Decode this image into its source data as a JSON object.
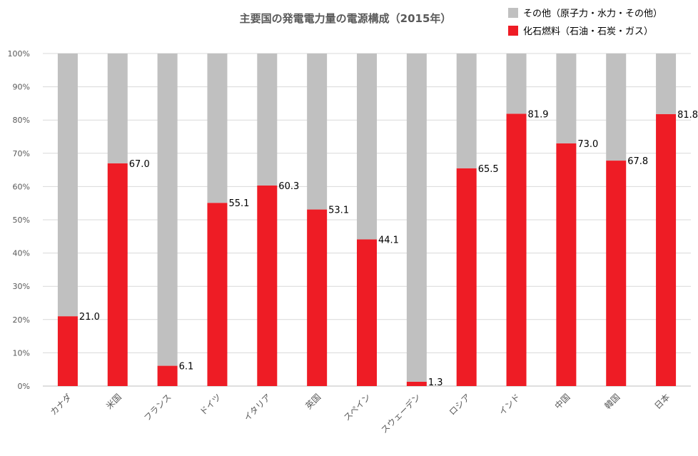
{
  "chart_data": {
    "type": "bar",
    "stacked": true,
    "title": "主要国の発電電力量の電源構成（2015年）",
    "categories": [
      "カナダ",
      "米国",
      "フランス",
      "ドイツ",
      "イタリア",
      "英国",
      "スペイン",
      "スウェーデン",
      "ロシア",
      "インド",
      "中国",
      "韓国",
      "日本"
    ],
    "series": [
      {
        "name": "化石燃料（石油・石炭・ガス）",
        "color": "#ee1c25",
        "values": [
          21.0,
          67.0,
          6.1,
          55.1,
          60.3,
          53.1,
          44.1,
          1.3,
          65.5,
          81.9,
          73.0,
          67.8,
          81.8
        ]
      },
      {
        "name": "その他（原子力・水力・その他）",
        "color": "#c0c0c0",
        "values": [
          79.0,
          33.0,
          93.9,
          44.9,
          39.7,
          46.9,
          55.9,
          98.7,
          34.5,
          18.1,
          27.0,
          32.2,
          18.2
        ]
      }
    ],
    "data_labels": [
      "21.0",
      "67.0",
      "6.1",
      "55.1",
      "60.3",
      "53.1",
      "44.1",
      "1.3",
      "65.5",
      "81.9",
      "73.0",
      "67.8",
      "81.8"
    ],
    "ylim": [
      0,
      100
    ],
    "yticks": [
      "0%",
      "10%",
      "20%",
      "30%",
      "40%",
      "50%",
      "60%",
      "70%",
      "80%",
      "90%",
      "100%"
    ],
    "legend": "top-right",
    "grid": true
  }
}
